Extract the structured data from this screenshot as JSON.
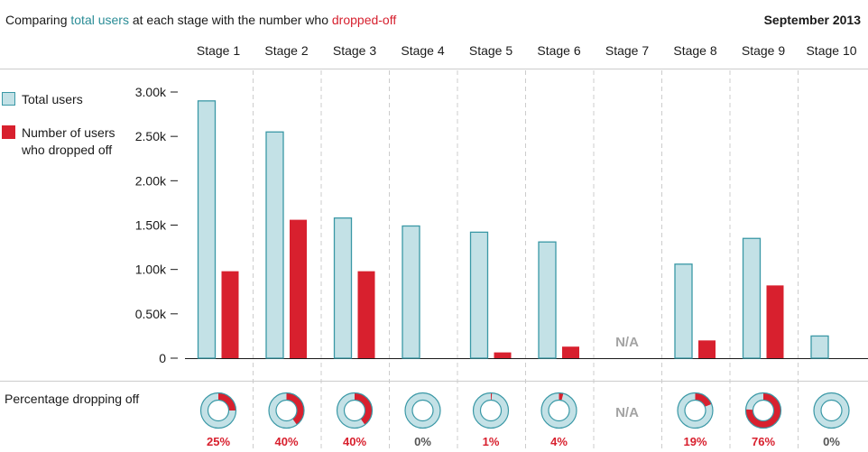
{
  "header": {
    "title_part1": "Comparing ",
    "title_total": "total users",
    "title_part2": " at each stage with the number who ",
    "title_dropped": "dropped-off",
    "date": "September 2013"
  },
  "legend": {
    "total": "Total users",
    "dropped": "Number of users who dropped off"
  },
  "percentage_title": "Percentage dropping off",
  "colors": {
    "total_fill": "#c3e1e6",
    "total_stroke": "#3a98a6",
    "dropped": "#d8202e",
    "na_text": "#a3a3a3"
  },
  "chart_data": {
    "type": "bar",
    "categories": [
      "Stage 1",
      "Stage 2",
      "Stage 3",
      "Stage 4",
      "Stage 5",
      "Stage 6",
      "Stage 7",
      "Stage 8",
      "Stage 9",
      "Stage 10"
    ],
    "series": [
      {
        "name": "Total users",
        "values": [
          2900,
          2550,
          1580,
          1490,
          1420,
          1310,
          null,
          1060,
          1350,
          250
        ]
      },
      {
        "name": "Number of users who dropped off",
        "values": [
          980,
          1560,
          980,
          0,
          65,
          130,
          null,
          200,
          820,
          0
        ]
      }
    ],
    "percent_dropping_off": [
      25,
      40,
      40,
      0,
      1,
      4,
      null,
      19,
      76,
      0
    ],
    "percent_labels": [
      "25%",
      "40%",
      "40%",
      "0%",
      "1%",
      "4%",
      "N/A",
      "19%",
      "76%",
      "0%"
    ],
    "na_label": "N/A",
    "yticks": [
      0,
      500,
      1000,
      1500,
      2000,
      2500,
      3000
    ],
    "ytick_labels": [
      "0",
      "0.50k",
      "1.00k",
      "1.50k",
      "2.00k",
      "2.50k",
      "3.00k"
    ],
    "ylim": [
      0,
      3000
    ]
  }
}
